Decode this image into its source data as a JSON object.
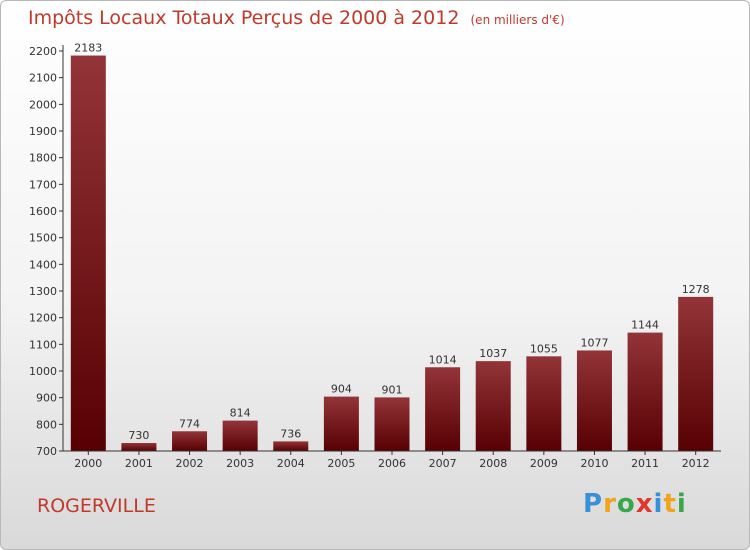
{
  "header": {
    "title": "Impôts Locaux Totaux Perçus de 2000 à 2012",
    "subtitle": "(en milliers d'€)"
  },
  "footer": {
    "city": "ROGERVILLE",
    "logo": [
      "P",
      "r",
      "o",
      "x",
      "i",
      "t",
      "i"
    ],
    "logo_colors": [
      "#3a8fd9",
      "#f2a21b",
      "#3aa64a",
      "#e2352b",
      "#3a8fd9",
      "#f2a21b",
      "#3aa64a"
    ]
  },
  "chart_data": {
    "type": "bar",
    "title": "Impôts Locaux Totaux Perçus de 2000 à 2012",
    "categories": [
      "2000",
      "2001",
      "2002",
      "2003",
      "2004",
      "2005",
      "2006",
      "2007",
      "2008",
      "2009",
      "2010",
      "2011",
      "2012"
    ],
    "values": [
      2183,
      730,
      774,
      814,
      736,
      904,
      901,
      1014,
      1037,
      1055,
      1077,
      1144,
      1278
    ],
    "ylim": [
      700,
      2200
    ],
    "yticks": [
      700,
      800,
      900,
      1000,
      1100,
      1200,
      1300,
      1400,
      1500,
      1600,
      1700,
      1800,
      1900,
      2000,
      2100,
      2200
    ],
    "grid": false,
    "bar_color": "#7a1015"
  }
}
